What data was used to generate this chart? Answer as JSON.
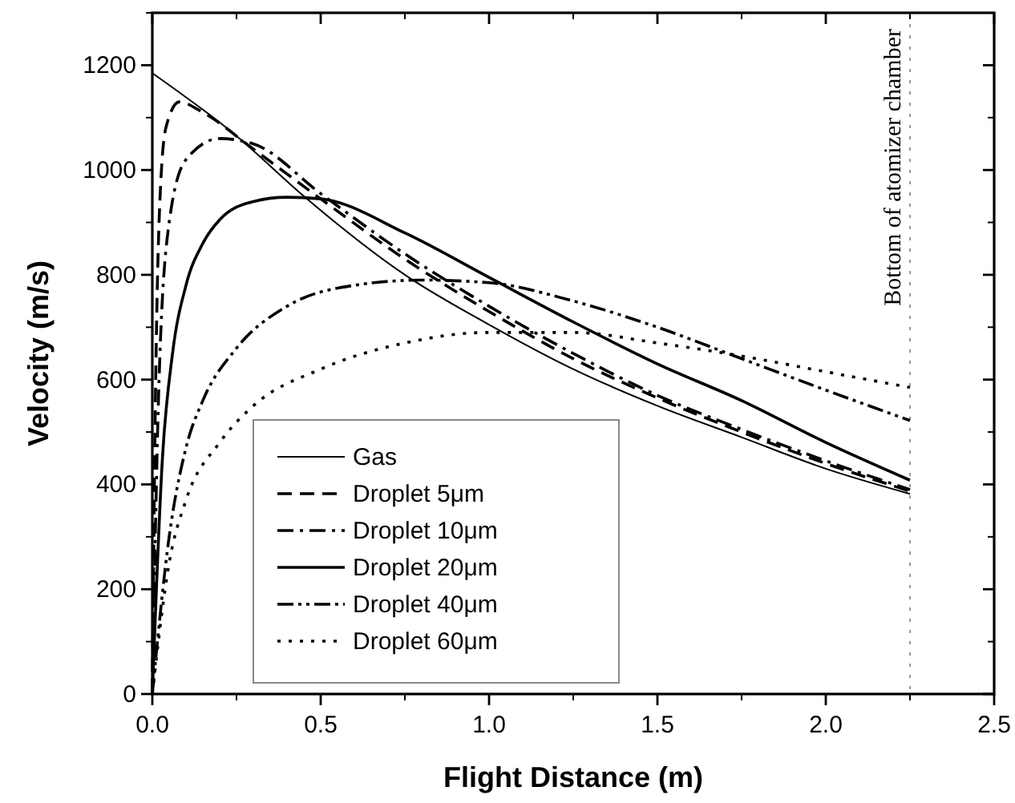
{
  "chart_data": {
    "type": "line",
    "xlabel": "Flight Distance (m)",
    "ylabel": "Velocity (m/s)",
    "xlim": [
      0,
      2.5
    ],
    "xticks": [
      {
        "value": 0,
        "label": "0.0"
      },
      {
        "value": 0.5,
        "label": "0.5"
      },
      {
        "value": 1,
        "label": "1.0"
      },
      {
        "value": 1.5,
        "label": "1.5"
      },
      {
        "value": 2,
        "label": "2.0"
      },
      {
        "value": 2.5,
        "label": "2.5"
      }
    ],
    "ylim": [
      0,
      1300
    ],
    "yticks": [
      0,
      200,
      400,
      600,
      800,
      1000,
      1200
    ],
    "grid": false,
    "legend": "bottom left",
    "ref_lines": [
      {
        "axis": "x",
        "value": 2.25,
        "label": "Bottom of atomizer chamber",
        "color": "#999999",
        "line_style": "dotted"
      }
    ],
    "series": [
      {
        "name": "Gas",
        "color": "#000000",
        "line_style": "solid",
        "x": [
          0,
          0.25,
          0.45,
          0.75,
          1.0,
          1.25,
          1.5,
          1.75,
          2.0,
          2.25
        ],
        "values": [
          1185,
          1065,
          950,
          800,
          705,
          620,
          550,
          490,
          430,
          382
        ]
      },
      {
        "name": "Droplet 5μm",
        "color": "#000000",
        "line_style": "dashed",
        "x": [
          0,
          0.01,
          0.02,
          0.04,
          0.08,
          0.15,
          0.3,
          0.5,
          0.75,
          1.0,
          1.25,
          1.5,
          1.75,
          2.0,
          2.25
        ],
        "values": [
          0,
          600,
          900,
          1080,
          1130,
          1110,
          1040,
          945,
          830,
          730,
          640,
          565,
          500,
          440,
          387
        ]
      },
      {
        "name": "Droplet 10μm",
        "color": "#000000",
        "line_style": "dashdot",
        "x": [
          0,
          0.02,
          0.05,
          0.1,
          0.2,
          0.3,
          0.5,
          0.75,
          1.0,
          1.25,
          1.5,
          1.75,
          2.0,
          2.25
        ],
        "values": [
          0,
          600,
          900,
          1020,
          1060,
          1050,
          955,
          840,
          740,
          650,
          570,
          505,
          445,
          390
        ]
      },
      {
        "name": "Droplet 20μm",
        "color": "#000000",
        "line_style": "solid",
        "x": [
          0,
          0.03,
          0.06,
          0.1,
          0.15,
          0.2,
          0.3,
          0.4,
          0.5,
          0.75,
          1.0,
          1.25,
          1.5,
          1.75,
          2.0,
          2.25
        ],
        "values": [
          0,
          450,
          650,
          780,
          860,
          905,
          940,
          948,
          945,
          880,
          795,
          710,
          630,
          560,
          480,
          408
        ]
      },
      {
        "name": "Droplet 40μm",
        "color": "#000000",
        "line_style": "dashdotdot",
        "x": [
          0,
          0.05,
          0.1,
          0.15,
          0.25,
          0.4,
          0.6,
          0.8,
          1.0,
          1.25,
          1.5,
          1.75,
          2.0,
          2.25
        ],
        "values": [
          0,
          300,
          470,
          560,
          660,
          740,
          780,
          790,
          785,
          750,
          700,
          640,
          580,
          522
        ]
      },
      {
        "name": "Droplet 60μm",
        "color": "#000000",
        "line_style": "dotted",
        "x": [
          0,
          0.05,
          0.1,
          0.2,
          0.3,
          0.5,
          0.75,
          1.0,
          1.25,
          1.5,
          1.75,
          2.0,
          2.25
        ],
        "values": [
          0,
          250,
          370,
          480,
          550,
          620,
          670,
          690,
          690,
          670,
          645,
          615,
          585
        ]
      }
    ]
  }
}
